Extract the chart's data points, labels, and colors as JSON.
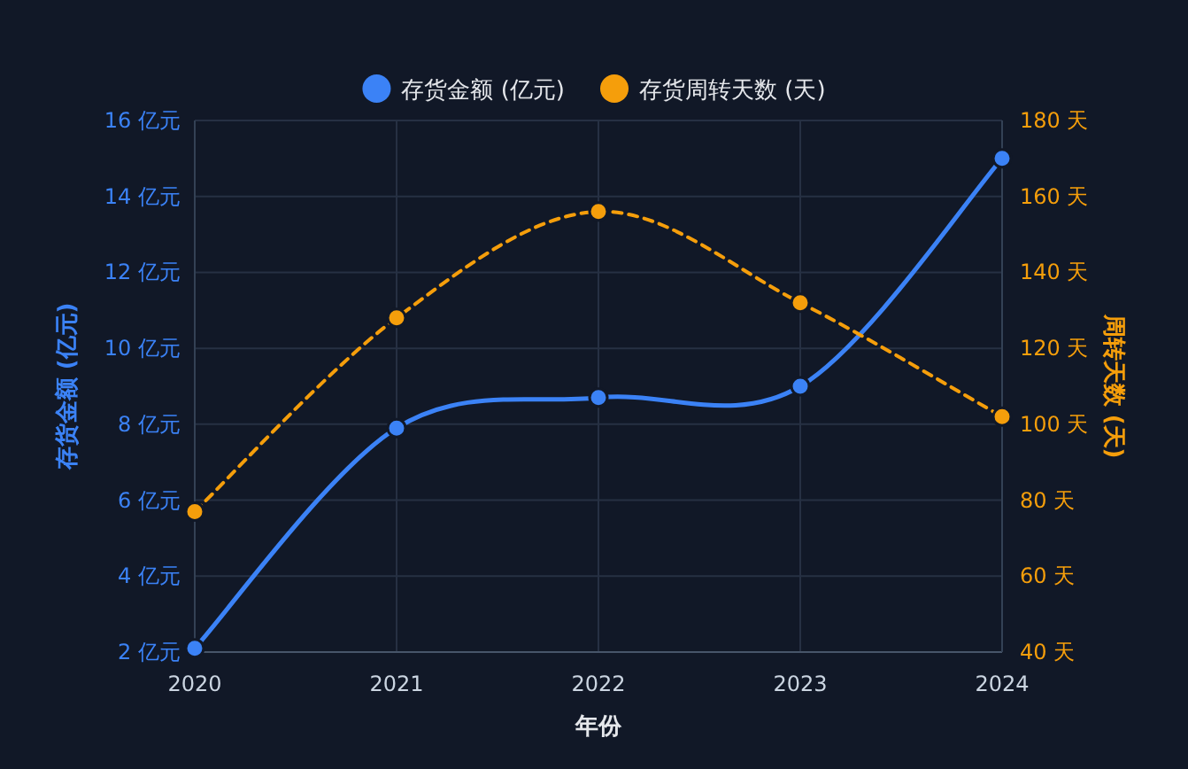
{
  "chart_data": {
    "type": "line",
    "xlabel": "年份",
    "ylabel": "存货金额 (亿元)",
    "y2label": "周转天数 (天)",
    "categories": [
      "2020",
      "2021",
      "2022",
      "2023",
      "2024"
    ],
    "series": [
      {
        "name": "存货金额 (亿元)",
        "color": "#3b82f6",
        "values": [
          2.1,
          7.9,
          8.7,
          9.0,
          15.0
        ],
        "line_style": "solid"
      },
      {
        "name": "存货周转天数 (天)",
        "color": "#f59e0b",
        "values": [
          77,
          128,
          156,
          132,
          102
        ],
        "axis": "y2",
        "line_style": "dashed"
      }
    ],
    "ylim": [
      2,
      16
    ],
    "yticks": [
      {
        "value": 2,
        "label": "2 亿元"
      },
      {
        "value": 4,
        "label": "4 亿元"
      },
      {
        "value": 6,
        "label": "6 亿元"
      },
      {
        "value": 8,
        "label": "8 亿元"
      },
      {
        "value": 10,
        "label": "10 亿元"
      },
      {
        "value": 12,
        "label": "12 亿元"
      },
      {
        "value": 14,
        "label": "14 亿元"
      },
      {
        "value": 16,
        "label": "16 亿元"
      }
    ],
    "y2lim": [
      40,
      180
    ],
    "y2ticks": [
      {
        "value": 40,
        "label": "40 天"
      },
      {
        "value": 60,
        "label": "60 天"
      },
      {
        "value": 80,
        "label": "80 天"
      },
      {
        "value": 100,
        "label": "100 天"
      },
      {
        "value": 120,
        "label": "120 天"
      },
      {
        "value": 140,
        "label": "140 天"
      },
      {
        "value": 160,
        "label": "160 天"
      },
      {
        "value": 180,
        "label": "180 天"
      }
    ],
    "grid": true,
    "legend": "top",
    "marker": "circle"
  }
}
